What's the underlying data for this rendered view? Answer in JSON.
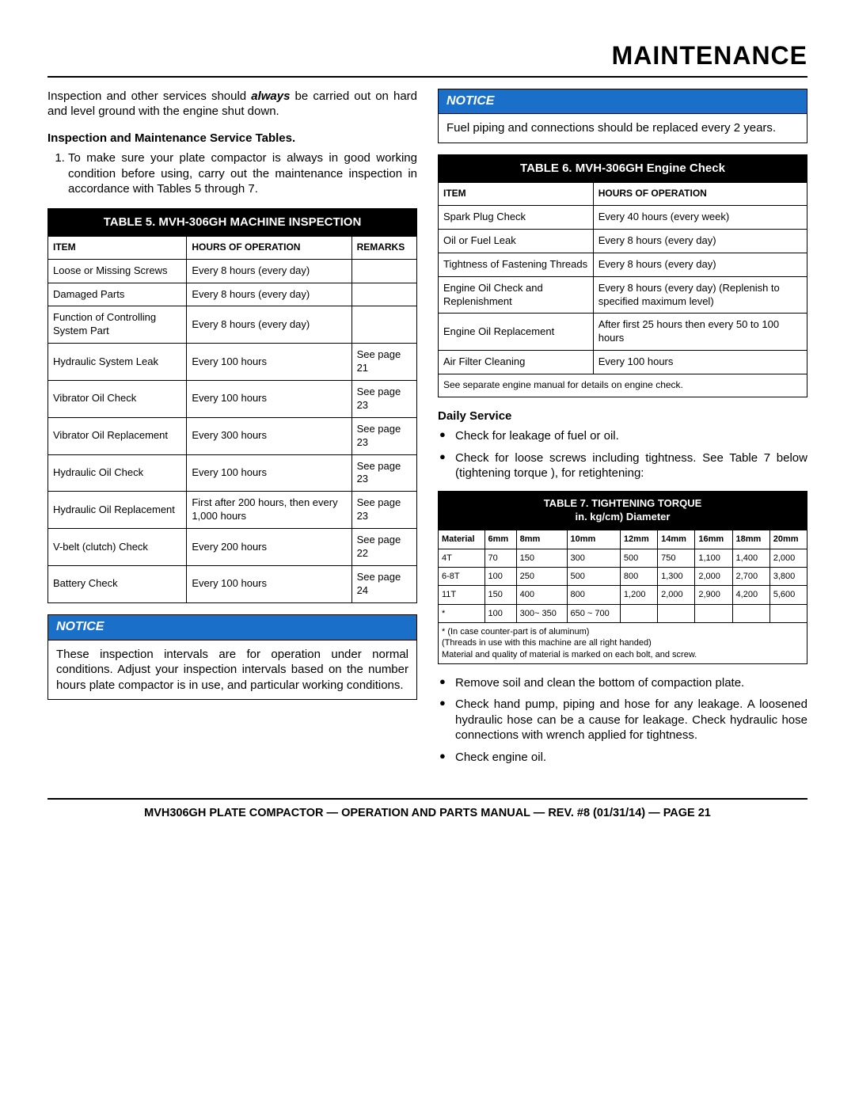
{
  "page_title": "MAINTENANCE",
  "intro_before": "Inspection and other services should ",
  "intro_always": "always",
  "intro_after": " be carried out on hard and level ground with the engine shut down.",
  "subhead_tables": "Inspection and Maintenance Service Tables.",
  "numlist_1": "To make sure your plate compactor is always in good working condition before using, carry out the maintenance inspection in accordance with Tables 5 through 7.",
  "table5": {
    "title": "TABLE 5. MVH-306GH MACHINE INSPECTION",
    "headers": [
      "ITEM",
      "HOURS OF OPERATION",
      "REMARKS"
    ],
    "rows": [
      [
        "Loose or Missing Screws",
        "Every 8 hours (every day)",
        ""
      ],
      [
        "Damaged Parts",
        "Every 8 hours (every day)",
        ""
      ],
      [
        "Function of Controlling System Part",
        "Every 8 hours (every day)",
        ""
      ],
      [
        "Hydraulic System Leak",
        "Every 100 hours",
        "See page 21"
      ],
      [
        "Vibrator Oil Check",
        "Every 100 hours",
        "See page 23"
      ],
      [
        "Vibrator Oil Replacement",
        "Every 300 hours",
        "See page 23"
      ],
      [
        "Hydraulic Oil Check",
        "Every 100 hours",
        "See page 23"
      ],
      [
        "Hydraulic Oil Replacement",
        "First after 200 hours, then every 1,000 hours",
        "See page 23"
      ],
      [
        "V-belt (clutch) Check",
        "Every 200 hours",
        "See page 22"
      ],
      [
        "Battery Check",
        "Every 100 hours",
        "See page 24"
      ]
    ]
  },
  "notice1": {
    "label": "NOTICE",
    "body": "These inspection intervals are for operation under normal conditions. Adjust your inspection intervals based on the number hours plate compactor is in use, and particular working conditions."
  },
  "notice2": {
    "label": "NOTICE",
    "body": "Fuel piping and connections should be replaced every 2 years."
  },
  "table6": {
    "title": "TABLE 6. MVH-306GH Engine Check",
    "headers": [
      "ITEM",
      "HOURS OF OPERATION"
    ],
    "rows": [
      [
        "Spark Plug Check",
        "Every 40 hours (every week)"
      ],
      [
        "Oil or Fuel Leak",
        "Every 8 hours (every day)"
      ],
      [
        "Tightness of Fastening Threads",
        "Every 8 hours (every day)"
      ],
      [
        "Engine Oil Check and Replenishment",
        "Every 8 hours (every day) (Replenish to specified maximum level)"
      ],
      [
        "Engine Oil Replacement",
        "After first 25 hours then every 50 to 100 hours"
      ],
      [
        "Air Filter Cleaning",
        "Every 100 hours"
      ]
    ],
    "footer": "See separate engine manual for details on engine check."
  },
  "daily_service_head": "Daily Service",
  "daily_bullets_a": [
    "Check for leakage of fuel or oil.",
    "Check for loose screws including tightness. See Table 7 below (tightening torque ), for retightening:"
  ],
  "table7": {
    "title_l1": "TABLE 7. TIGHTENING TORQUE",
    "title_l2": "in. kg/cm) Diameter",
    "headers": [
      "Material",
      "6mm",
      "8mm",
      "10mm",
      "12mm",
      "14mm",
      "16mm",
      "18mm",
      "20mm"
    ],
    "rows": [
      [
        "4T",
        "70",
        "150",
        "300",
        "500",
        "750",
        "1,100",
        "1,400",
        "2,000"
      ],
      [
        "6-8T",
        "100",
        "250",
        "500",
        "800",
        "1,300",
        "2,000",
        "2,700",
        "3,800"
      ],
      [
        "11T",
        "150",
        "400",
        "800",
        "1,200",
        "2,000",
        "2,900",
        "4,200",
        "5,600"
      ],
      [
        "*",
        "100",
        "300~ 350",
        "650 ~ 700",
        "",
        "",
        "",
        "",
        ""
      ]
    ],
    "note1": "* (In case counter-part is of aluminum)",
    "note2": "(Threads in use with this machine are all right handed)",
    "note3": "Material and quality of material is marked on each bolt, and screw."
  },
  "daily_bullets_b": [
    "Remove soil and clean the bottom of compaction plate.",
    "Check hand pump, piping and hose for any leakage. A loosened hydraulic hose can be a cause for leakage. Check hydraulic hose connections with wrench applied for tightness.",
    "Check engine oil."
  ],
  "footer": "MVH306GH PLATE COMPACTOR — OPERATION AND PARTS MANUAL — REV. #8 (01/31/14) — PAGE 21"
}
